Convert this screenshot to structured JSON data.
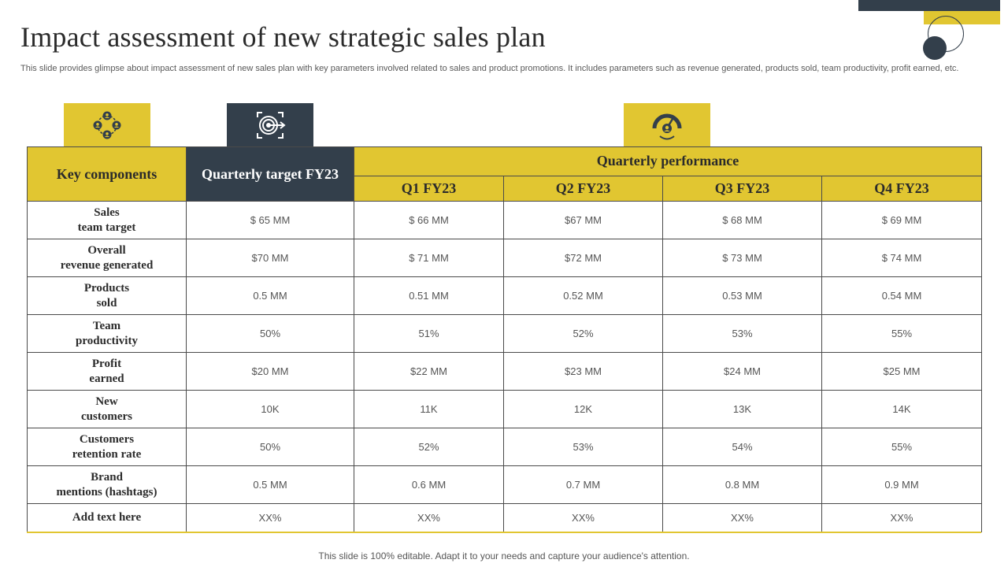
{
  "title": "Impact assessment of new strategic sales plan",
  "description": "This slide provides glimpse about impact assessment of new sales plan with key parameters involved related to sales and product promotions. It includes parameters such as revenue generated, products sold, team productivity, profit earned, etc.",
  "colors": {
    "accent": "#e1c631",
    "dark": "#333f4b"
  },
  "icons": {
    "first": "team-network-icon",
    "second": "target-icon",
    "third": "performance-gauge-icon"
  },
  "table": {
    "col_key": "Key components",
    "col_target": "Quarterly target FY23",
    "col_perf": "Quarterly performance",
    "quarters": [
      "Q1 FY23",
      "Q2 FY23",
      "Q3 FY23",
      "Q4 FY23"
    ],
    "rows": [
      {
        "label_line1": "Sales",
        "label_line2": "team target",
        "values": [
          "$ 65 MM",
          "$ 66 MM",
          "$67 MM",
          "$ 68 MM",
          "$ 69 MM"
        ]
      },
      {
        "label_line1": "Overall",
        "label_line2": "revenue generated",
        "values": [
          "$70 MM",
          "$ 71 MM",
          "$72 MM",
          "$ 73 MM",
          "$ 74 MM"
        ]
      },
      {
        "label_line1": "Products",
        "label_line2": "sold",
        "values": [
          "0.5 MM",
          "0.51 MM",
          "0.52 MM",
          "0.53 MM",
          "0.54 MM"
        ]
      },
      {
        "label_line1": "Team",
        "label_line2": "productivity",
        "values": [
          "50%",
          "51%",
          "52%",
          "53%",
          "55%"
        ]
      },
      {
        "label_line1": "Profit",
        "label_line2": "earned",
        "values": [
          "$20 MM",
          "$22 MM",
          "$23 MM",
          "$24 MM",
          "$25 MM"
        ]
      },
      {
        "label_line1": "New",
        "label_line2": "customers",
        "values": [
          "10K",
          "11K",
          "12K",
          "13K",
          "14K"
        ]
      },
      {
        "label_line1": "Customers",
        "label_line2": "retention rate",
        "values": [
          "50%",
          "52%",
          "53%",
          "54%",
          "55%"
        ]
      },
      {
        "label_line1": "Brand",
        "label_line2": "mentions (hashtags)",
        "values": [
          "0.5 MM",
          "0.6 MM",
          "0.7 MM",
          "0.8 MM",
          "0.9 MM"
        ]
      },
      {
        "label_line1": "Add text here",
        "label_line2": "",
        "values": [
          "XX%",
          "XX%",
          "XX%",
          "XX%",
          "XX%"
        ]
      }
    ]
  },
  "footer": "This slide is 100% editable. Adapt it to your needs and capture your audience's attention."
}
